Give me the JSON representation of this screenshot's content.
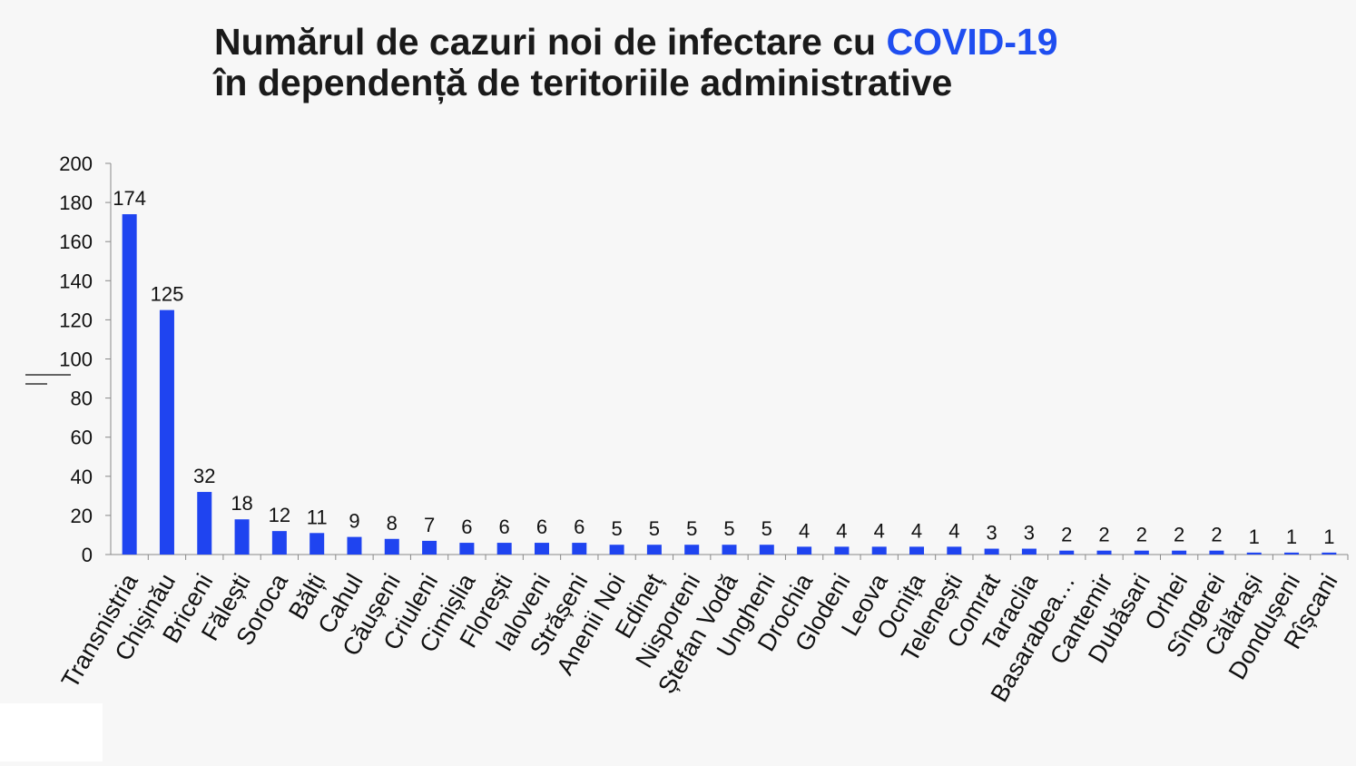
{
  "chart_data": {
    "type": "bar",
    "title": {
      "line1": "Numărul de cazuri noi de infectare cu ",
      "highlight": "COVID-19",
      "line2": "în dependență de teritoriile administrative"
    },
    "categories": [
      "Transnistria",
      "Chișinău",
      "Briceni",
      "Fălești",
      "Soroca",
      "Bălți",
      "Cahul",
      "Căușeni",
      "Criuleni",
      "Cimișlia",
      "Florești",
      "Ialoveni",
      "Strășeni",
      "Anenii Noi",
      "Edineț",
      "Nisporeni",
      "Ștefan Vodă",
      "Ungheni",
      "Drochia",
      "Glodeni",
      "Leova",
      "Ocnița",
      "Telenești",
      "Comrat",
      "Taraclia",
      "Basarabea…",
      "Cantemir",
      "Dubăsari",
      "Orhei",
      "Sîngerei",
      "Călărași",
      "Dondușeni",
      "Rîșcani"
    ],
    "values": [
      174,
      125,
      32,
      18,
      12,
      11,
      9,
      8,
      7,
      6,
      6,
      6,
      6,
      5,
      5,
      5,
      5,
      5,
      4,
      4,
      4,
      4,
      4,
      3,
      3,
      2,
      2,
      2,
      2,
      2,
      1,
      1,
      1
    ],
    "color": "#1f44f0",
    "highlight_color": "#1f4ef0",
    "ylim": [
      0,
      200
    ],
    "yticks": [
      0,
      20,
      40,
      60,
      80,
      100,
      120,
      140,
      160,
      180,
      200
    ],
    "grid": false
  }
}
